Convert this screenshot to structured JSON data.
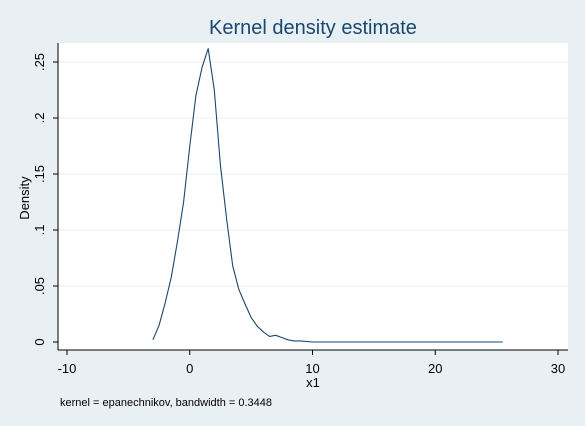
{
  "chart_data": {
    "type": "line",
    "title": "Kernel density estimate",
    "xlabel": "x1",
    "ylabel": "Density",
    "note": "kernel = epanechnikov, bandwidth = 0.3448",
    "xlim": [
      -10,
      30
    ],
    "ylim": [
      0,
      0.27
    ],
    "xticks": [
      -10,
      0,
      10,
      20,
      30
    ],
    "xtick_labels": [
      "-10",
      "0",
      "10",
      "20",
      "30"
    ],
    "yticks": [
      0,
      0.05,
      0.1,
      0.15,
      0.2,
      0.25
    ],
    "ytick_labels": [
      "0",
      ".05",
      ".1",
      ".15",
      ".2",
      ".25"
    ],
    "grid": true,
    "colors": {
      "background": "#e9f0f4",
      "plot_area": "#ffffff",
      "line": "#1a476f",
      "title": "#1a476f",
      "grid": "#eaf2f3"
    },
    "series": [
      {
        "x": [
          -3.0,
          -2.5,
          -2.0,
          -1.5,
          -1.0,
          -0.5,
          0.0,
          0.5,
          1.0,
          1.5,
          2.0,
          2.5,
          3.0,
          3.5,
          4.0,
          4.5,
          5.0,
          5.5,
          6.0,
          6.5,
          7.0,
          7.5,
          8.0,
          8.5,
          9.0,
          10.0,
          12.0,
          15.0,
          20.0,
          25.5
        ],
        "y": [
          0.002,
          0.015,
          0.035,
          0.058,
          0.09,
          0.125,
          0.175,
          0.22,
          0.245,
          0.262,
          0.225,
          0.158,
          0.11,
          0.068,
          0.047,
          0.034,
          0.022,
          0.014,
          0.009,
          0.005,
          0.006,
          0.004,
          0.002,
          0.001,
          0.001,
          0.0,
          0.0,
          0.0,
          0.0,
          0.0
        ]
      }
    ]
  }
}
